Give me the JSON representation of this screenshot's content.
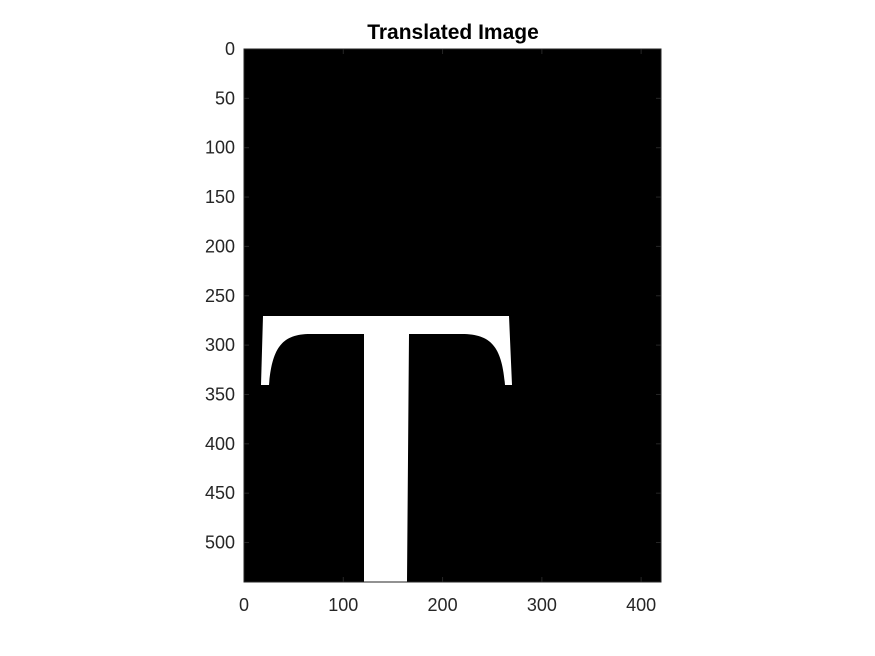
{
  "figure": {
    "title": "Translated Image",
    "background_color": "#000000",
    "foreground_color": "#ffffff",
    "axes_color": "#262626"
  },
  "image": {
    "width": 420,
    "height": 540,
    "content": "translated-letter-T"
  },
  "axes": {
    "x_ticks": [
      0,
      100,
      200,
      300,
      400
    ],
    "y_ticks": [
      0,
      50,
      100,
      150,
      200,
      250,
      300,
      350,
      400,
      450,
      500
    ],
    "x_range": [
      0,
      420
    ],
    "y_range": [
      0,
      540
    ]
  }
}
